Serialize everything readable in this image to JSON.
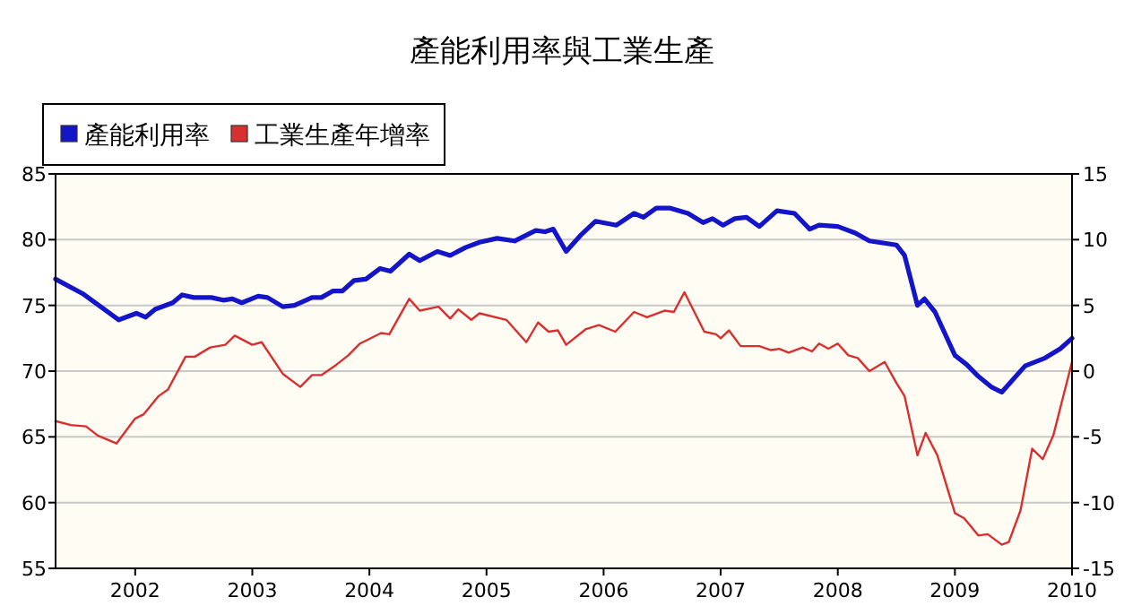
{
  "chart_data": {
    "type": "line",
    "title": "產能利用率與工業生產",
    "legend": "top left",
    "grid": "y",
    "xlim": [
      2001.32,
      2010
    ],
    "xticks": [
      2002,
      2003,
      2004,
      2005,
      2006,
      2007,
      2008,
      2009,
      2010
    ],
    "ylim": [
      55,
      85
    ],
    "yticks": [
      55,
      60,
      65,
      70,
      75,
      80,
      85
    ],
    "y2lim": [
      -15,
      15
    ],
    "y2ticks": [
      -15,
      -10,
      -5,
      0,
      5,
      10,
      15
    ],
    "series": [
      {
        "name": "產能利用率",
        "color": "#1414c8",
        "x": [
          2001.32,
          2001.55,
          2001.86,
          2002.01,
          2002.09,
          2002.17,
          2002.32,
          2002.4,
          2002.5,
          2002.65,
          2002.75,
          2002.83,
          2002.91,
          2003.05,
          2003.13,
          2003.26,
          2003.36,
          2003.51,
          2003.59,
          2003.69,
          2003.77,
          2003.87,
          2003.97,
          2004.09,
          2004.18,
          2004.34,
          2004.43,
          2004.58,
          2004.69,
          2004.82,
          2004.94,
          2005.09,
          2005.24,
          2005.42,
          2005.5,
          2005.57,
          2005.68,
          2005.8,
          2005.93,
          2006.11,
          2006.26,
          2006.34,
          2006.45,
          2006.57,
          2006.72,
          2006.85,
          2006.93,
          2007.02,
          2007.12,
          2007.22,
          2007.33,
          2007.48,
          2007.63,
          2007.76,
          2007.84,
          2008.0,
          2008.15,
          2008.27,
          2008.5,
          2008.57,
          2008.68,
          2008.74,
          2008.83,
          2009.0,
          2009.1,
          2009.2,
          2009.31,
          2009.4,
          2009.5,
          2009.6,
          2009.77,
          2009.9,
          2010.0
        ],
        "values": [
          77.0,
          75.9,
          73.9,
          74.4,
          74.1,
          74.7,
          75.2,
          75.8,
          75.6,
          75.6,
          75.4,
          75.5,
          75.2,
          75.7,
          75.6,
          74.9,
          75.0,
          75.6,
          75.6,
          76.1,
          76.1,
          76.9,
          77.0,
          77.8,
          77.6,
          78.9,
          78.4,
          79.1,
          78.8,
          79.4,
          79.8,
          80.1,
          79.9,
          80.7,
          80.6,
          80.8,
          79.1,
          80.3,
          81.4,
          81.1,
          82.0,
          81.7,
          82.4,
          82.4,
          82.0,
          81.3,
          81.6,
          81.1,
          81.6,
          81.7,
          81.0,
          82.2,
          82.0,
          80.8,
          81.1,
          81.0,
          80.5,
          79.9,
          79.6,
          78.8,
          75.0,
          75.5,
          74.5,
          71.2,
          70.5,
          69.6,
          68.8,
          68.4,
          69.4,
          70.4,
          71.0,
          71.7,
          72.5
        ]
      },
      {
        "name": "工業生產年增率",
        "color": "#d83030",
        "axis": "y2",
        "x": [
          2001.32,
          2001.45,
          2001.58,
          2001.68,
          2001.84,
          2002.0,
          2002.07,
          2002.2,
          2002.28,
          2002.43,
          2002.51,
          2002.64,
          2002.77,
          2002.85,
          2003.0,
          2003.08,
          2003.26,
          2003.41,
          2003.51,
          2003.59,
          2003.72,
          2003.82,
          2003.92,
          2004.1,
          2004.17,
          2004.34,
          2004.43,
          2004.59,
          2004.69,
          2004.76,
          2004.87,
          2004.94,
          2005.17,
          2005.34,
          2005.44,
          2005.53,
          2005.61,
          2005.68,
          2005.85,
          2005.96,
          2006.1,
          2006.26,
          2006.37,
          2006.52,
          2006.6,
          2006.69,
          2006.86,
          2006.96,
          2007.0,
          2007.07,
          2007.17,
          2007.33,
          2007.43,
          2007.5,
          2007.58,
          2007.7,
          2007.78,
          2007.84,
          2007.92,
          2008.0,
          2008.09,
          2008.17,
          2008.27,
          2008.4,
          2008.5,
          2008.57,
          2008.68,
          2008.75,
          2008.85,
          2009.0,
          2009.08,
          2009.2,
          2009.28,
          2009.4,
          2009.46,
          2009.56,
          2009.66,
          2009.75,
          2009.84,
          2010.0
        ],
        "values": [
          -3.8,
          -4.1,
          -4.2,
          -4.9,
          -5.5,
          -3.6,
          -3.3,
          -1.9,
          -1.4,
          1.1,
          1.1,
          1.8,
          2.0,
          2.7,
          2.0,
          2.2,
          -0.2,
          -1.2,
          -0.3,
          -0.3,
          0.5,
          1.2,
          2.1,
          2.9,
          2.8,
          5.5,
          4.6,
          4.9,
          4.0,
          4.7,
          3.9,
          4.4,
          3.9,
          2.2,
          3.7,
          3.0,
          3.1,
          2.0,
          3.2,
          3.5,
          3.0,
          4.5,
          4.1,
          4.6,
          4.5,
          6.0,
          3.0,
          2.8,
          2.5,
          3.1,
          1.9,
          1.9,
          1.6,
          1.7,
          1.4,
          1.8,
          1.5,
          2.1,
          1.7,
          2.1,
          1.2,
          1.0,
          0.0,
          0.7,
          -0.9,
          -1.9,
          -6.4,
          -4.7,
          -6.4,
          -10.8,
          -11.2,
          -12.5,
          -12.4,
          -13.2,
          -13.0,
          -10.6,
          -5.9,
          -6.7,
          -4.9,
          0.7
        ]
      }
    ]
  }
}
